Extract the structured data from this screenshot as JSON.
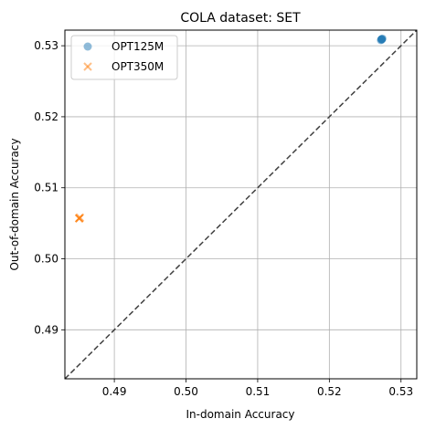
{
  "chart_data": {
    "type": "scatter",
    "title": "COLA dataset: SET",
    "xlabel": "In-domain Accuracy",
    "ylabel": "Out-of-domain Accuracy",
    "xlim": [
      0.4831,
      0.5322
    ],
    "ylim": [
      0.4831,
      0.5322
    ],
    "xticks": [
      0.49,
      0.5,
      0.51,
      0.52,
      0.53
    ],
    "yticks": [
      0.49,
      0.5,
      0.51,
      0.52,
      0.53
    ],
    "xtick_labels": [
      "0.49",
      "0.50",
      "0.51",
      "0.52",
      "0.53"
    ],
    "ytick_labels": [
      "0.49",
      "0.50",
      "0.51",
      "0.52",
      "0.53"
    ],
    "grid": true,
    "legend_position": "top-left",
    "diagonal_reference_line": true,
    "series": [
      {
        "name": "OPT125M",
        "marker": "circle",
        "color": "#1f77b4",
        "points": [
          [
            0.5273,
            0.5309
          ],
          [
            0.5273,
            0.5309
          ],
          [
            0.5273,
            0.5309
          ],
          [
            0.5274,
            0.531
          ],
          [
            0.5272,
            0.5308
          ]
        ]
      },
      {
        "name": "OPT350M",
        "marker": "x",
        "color": "#ff7f0e",
        "points": [
          [
            0.4851,
            0.5057
          ],
          [
            0.4851,
            0.5057
          ],
          [
            0.4851,
            0.5057
          ],
          [
            0.4852,
            0.5058
          ]
        ]
      }
    ]
  }
}
